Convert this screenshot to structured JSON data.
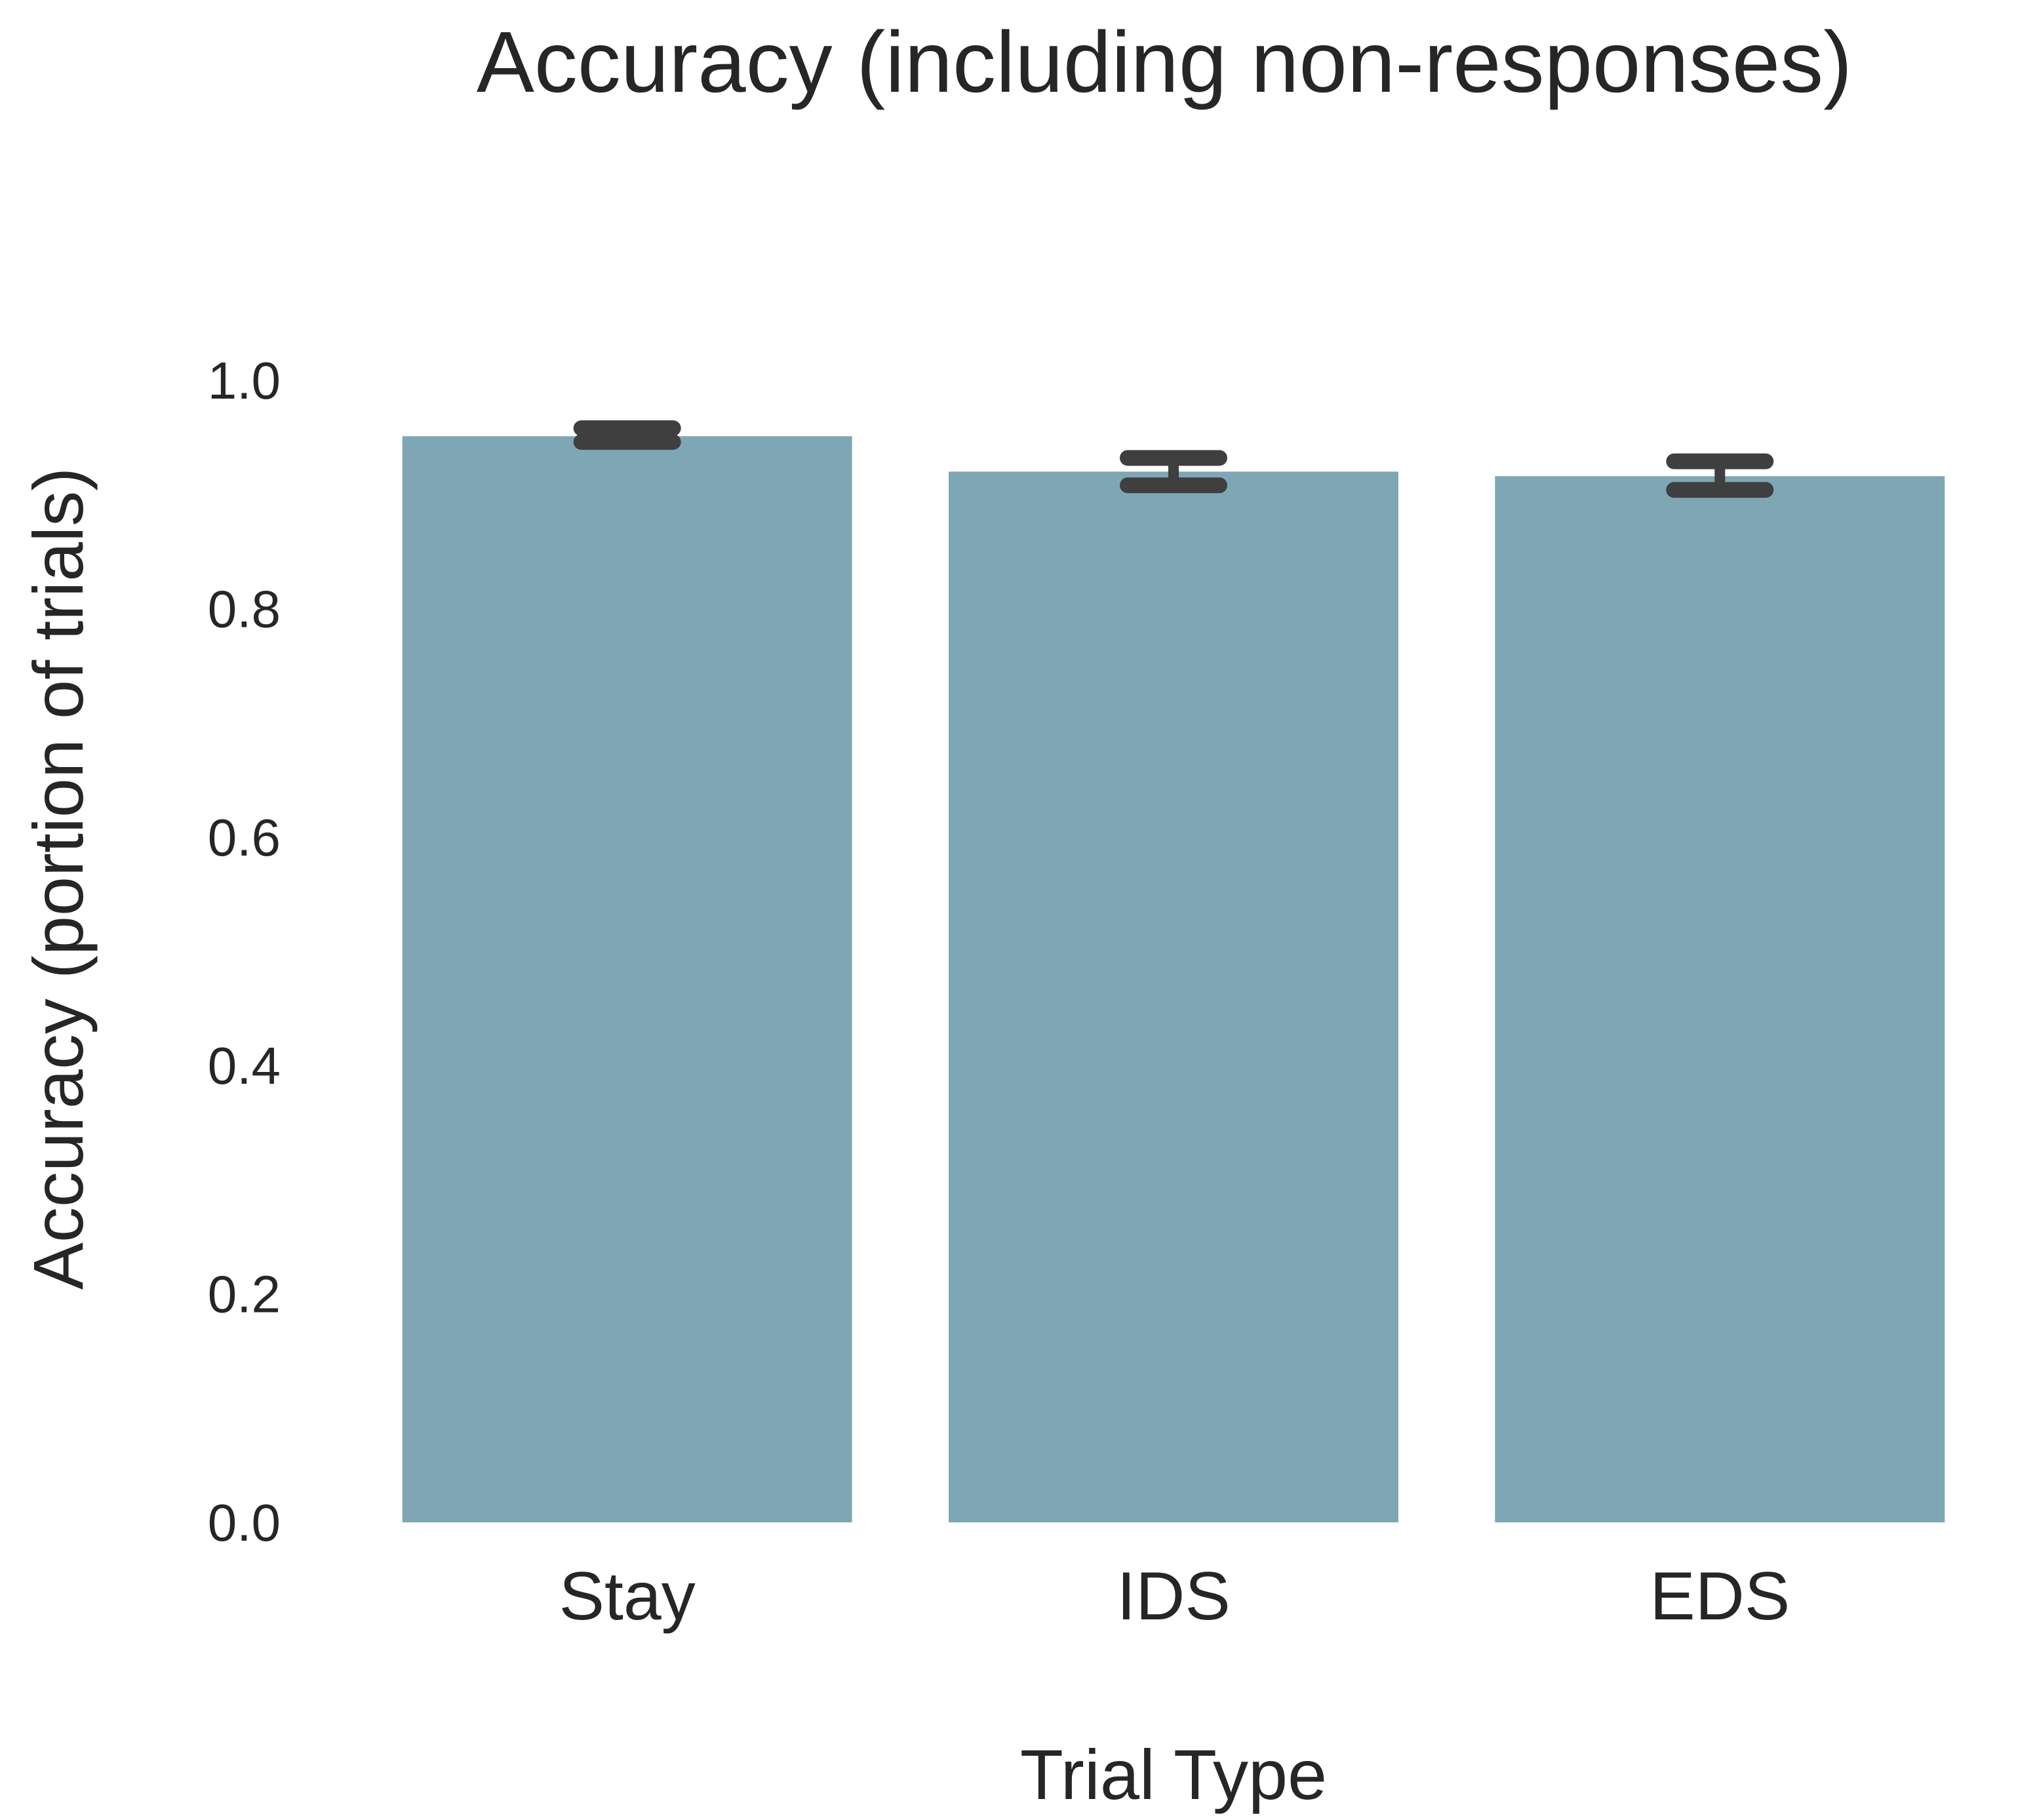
{
  "chart_data": {
    "type": "bar",
    "title": "Accuracy (including non-responses)",
    "xlabel": "Trial Type",
    "ylabel": "Accuracy  (portion of trials)",
    "categories": [
      "Stay",
      "IDS",
      "EDS"
    ],
    "values": [
      0.951,
      0.92,
      0.916
    ],
    "error_bars": [
      {
        "low": 0.946,
        "high": 0.958
      },
      {
        "low": 0.908,
        "high": 0.932
      },
      {
        "low": 0.904,
        "high": 0.929
      }
    ],
    "ylim": [
      0,
      1.0
    ],
    "yticks": [
      "0.0",
      "0.2",
      "0.4",
      "0.6",
      "0.8",
      "1.0"
    ],
    "grid": false,
    "colors": {
      "bar": "#7fa6b4",
      "error_bar": "#3f3f3f",
      "text": "#262626",
      "background": "#ffffff"
    }
  }
}
